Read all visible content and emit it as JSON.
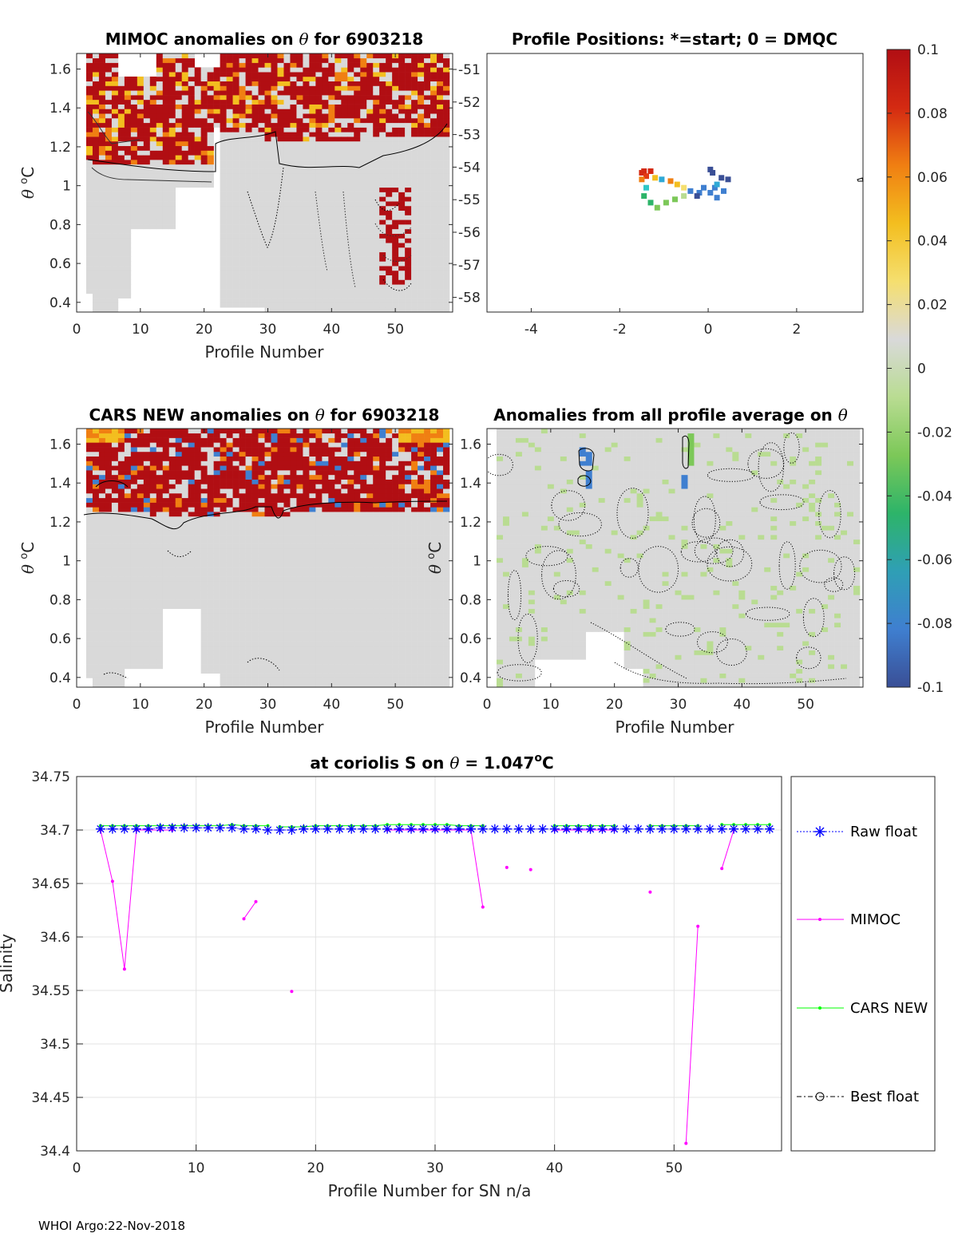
{
  "footer": "WHOI Argo:22-Nov-2018",
  "colorbar": {
    "ticks": [
      "0.1",
      "0.08",
      "0.06",
      "0.04",
      "0.02",
      "0",
      "-0.02",
      "-0.04",
      "-0.06",
      "-0.08",
      "-0.1"
    ],
    "range": [
      -0.1,
      0.1
    ],
    "stops": [
      "#3a4f96",
      "#3f7fd0",
      "#2f9fb5",
      "#2db469",
      "#7cc858",
      "#b9dc92",
      "#d9d9d9",
      "#f5df6f",
      "#f3be1f",
      "#f07f12",
      "#d42a12",
      "#b10e13"
    ]
  },
  "chart_data": [
    {
      "id": "mimoc",
      "type": "heatmap",
      "title_parts": [
        "MIMOC anomalies on ",
        "θ",
        "  for 6903218"
      ],
      "xlabel": "Profile Number",
      "ylabel_parts": [
        "θ",
        " ",
        "o",
        "C"
      ],
      "xlim": [
        0,
        59
      ],
      "ylim": [
        0.35,
        1.68
      ],
      "xticks": [
        "0",
        "10",
        "20",
        "30",
        "40",
        "50"
      ],
      "yticks": [
        "1.6",
        "1.4",
        "1.2",
        "1",
        "0.8",
        "0.6",
        "0.4"
      ],
      "y2ticks": [
        "-51",
        "-52",
        "-53",
        "-54",
        "-55",
        "-56",
        "-57",
        "-58"
      ]
    },
    {
      "id": "positions",
      "type": "scatter",
      "title": "Profile Positions: *=start; 0 = DMQC",
      "xlim": [
        -5,
        3.5
      ],
      "ylim": [
        -58.3,
        -50.5
      ],
      "xticks": [
        "-4",
        "-2",
        "0",
        "2"
      ],
      "points": [
        {
          "x": -1.5,
          "y": -54.1,
          "c": "#d42a12"
        },
        {
          "x": -1.45,
          "y": -54.05,
          "c": "#d42a12"
        },
        {
          "x": -1.3,
          "y": -54.05,
          "c": "#d42a12"
        },
        {
          "x": -1.4,
          "y": -54.2,
          "c": "#e23a13"
        },
        {
          "x": -1.5,
          "y": -54.3,
          "c": "#f07f12"
        },
        {
          "x": -1.2,
          "y": -54.25,
          "c": "#f3be1f"
        },
        {
          "x": -1.05,
          "y": -54.3,
          "c": "#2fa9d6"
        },
        {
          "x": -0.85,
          "y": -54.35,
          "c": "#f07f12"
        },
        {
          "x": -0.7,
          "y": -54.45,
          "c": "#f3be1f"
        },
        {
          "x": -0.55,
          "y": -54.55,
          "c": "#f5df6f"
        },
        {
          "x": -0.55,
          "y": -54.8,
          "c": "#b9dc92"
        },
        {
          "x": -0.75,
          "y": -54.9,
          "c": "#7cc858"
        },
        {
          "x": -0.95,
          "y": -55.0,
          "c": "#7cc858"
        },
        {
          "x": -1.15,
          "y": -55.15,
          "c": "#7cc858"
        },
        {
          "x": -1.3,
          "y": -55.0,
          "c": "#2db469"
        },
        {
          "x": -1.45,
          "y": -54.8,
          "c": "#2db469"
        },
        {
          "x": -1.4,
          "y": -54.55,
          "c": "#2fc7c7"
        },
        {
          "x": -0.4,
          "y": -54.65,
          "c": "#3f7fd0"
        },
        {
          "x": -0.2,
          "y": -54.7,
          "c": "#3f7fd0"
        },
        {
          "x": -0.1,
          "y": -54.55,
          "c": "#3f7fd0"
        },
        {
          "x": -0.25,
          "y": -54.8,
          "c": "#3a4f96"
        },
        {
          "x": 0.05,
          "y": -54.7,
          "c": "#3f7fd0"
        },
        {
          "x": 0.15,
          "y": -54.55,
          "c": "#3f7fd0"
        },
        {
          "x": 0.35,
          "y": -54.65,
          "c": "#3f7fd0"
        },
        {
          "x": 0.2,
          "y": -54.85,
          "c": "#3f7fd0"
        },
        {
          "x": 0.3,
          "y": -54.25,
          "c": "#3a4f96"
        },
        {
          "x": 0.45,
          "y": -54.3,
          "c": "#3a4f96"
        },
        {
          "x": 0.1,
          "y": -54.1,
          "c": "#3a4f96"
        },
        {
          "x": 0.05,
          "y": -54.0,
          "c": "#3a4f96"
        },
        {
          "x": 0.2,
          "y": -54.45,
          "c": "#2fa9d6"
        }
      ]
    },
    {
      "id": "cars",
      "type": "heatmap",
      "title_parts": [
        "CARS NEW anomalies on ",
        "θ",
        " for 6903218"
      ],
      "xlabel": "Profile Number",
      "ylabel_parts": [
        "θ",
        " ",
        "o",
        "C"
      ],
      "xlim": [
        0,
        59
      ],
      "ylim": [
        0.35,
        1.68
      ],
      "xticks": [
        "0",
        "10",
        "20",
        "30",
        "40",
        "50"
      ],
      "yticks": [
        "1.6",
        "1.4",
        "1.2",
        "1",
        "0.8",
        "0.6",
        "0.4"
      ]
    },
    {
      "id": "allavg",
      "type": "heatmap",
      "title_parts": [
        "Anomalies from all profile average on ",
        "θ"
      ],
      "xlabel": "Profile Number",
      "ylabel_parts": [
        "θ",
        " ",
        "o",
        "C"
      ],
      "xlim": [
        0,
        59
      ],
      "ylim": [
        0.35,
        1.68
      ],
      "xticks": [
        "0",
        "10",
        "20",
        "30",
        "40",
        "50"
      ],
      "yticks": [
        "1.6",
        "1.4",
        "1.2",
        "1",
        "0.8",
        "0.6",
        "0.4"
      ]
    },
    {
      "id": "salinity",
      "type": "line",
      "title_parts": [
        "at coriolis S on ",
        "θ",
        " = 1.047",
        "o",
        "C"
      ],
      "xlabel": "Profile Number for SN n/a",
      "ylabel": "Salinity",
      "xlim": [
        0,
        59
      ],
      "ylim": [
        34.4,
        34.75
      ],
      "grid": true,
      "xticks": [
        "0",
        "10",
        "20",
        "30",
        "40",
        "50"
      ],
      "yticks": [
        "34.75",
        "34.7",
        "34.65",
        "34.6",
        "34.55",
        "34.5",
        "34.45",
        "34.4"
      ],
      "legend": [
        "Raw float",
        "MIMOC",
        "CARS NEW",
        "Best float"
      ],
      "series": [
        {
          "name": "Raw float",
          "color": "#0000ff",
          "x": [
            2,
            3,
            4,
            5,
            6,
            7,
            8,
            9,
            10,
            11,
            12,
            13,
            14,
            15,
            16,
            17,
            18,
            19,
            20,
            21,
            22,
            23,
            24,
            25,
            26,
            27,
            28,
            29,
            30,
            31,
            32,
            33,
            34,
            35,
            36,
            37,
            38,
            39,
            40,
            41,
            42,
            43,
            44,
            45,
            46,
            47,
            48,
            49,
            50,
            51,
            52,
            53,
            54,
            55,
            56,
            57,
            58
          ],
          "y": [
            34.701,
            34.701,
            34.701,
            34.701,
            34.701,
            34.702,
            34.702,
            34.702,
            34.702,
            34.702,
            34.702,
            34.702,
            34.701,
            34.701,
            34.7,
            34.7,
            34.7,
            34.701,
            34.701,
            34.701,
            34.701,
            34.701,
            34.701,
            34.701,
            34.701,
            34.701,
            34.701,
            34.701,
            34.701,
            34.701,
            34.701,
            34.701,
            34.701,
            34.701,
            34.701,
            34.701,
            34.701,
            34.701,
            34.701,
            34.701,
            34.701,
            34.701,
            34.701,
            34.701,
            34.701,
            34.701,
            34.701,
            34.701,
            34.701,
            34.701,
            34.701,
            34.701,
            34.701,
            34.701,
            34.701,
            34.701,
            34.701
          ]
        },
        {
          "name": "MIMOC",
          "color": "#ff00ff",
          "segments": [
            {
              "x": [
                2,
                3,
                4,
                5,
                6,
                7,
                8
              ],
              "y": [
                34.7,
                34.652,
                34.57,
                34.7,
                34.7,
                34.7,
                34.7
              ]
            },
            {
              "x": [
                14,
                15
              ],
              "y": [
                34.617,
                34.633
              ]
            },
            {
              "x": [
                18
              ],
              "y": [
                34.549
              ]
            },
            {
              "x": [
                26,
                27,
                28,
                29,
                30,
                31,
                32,
                33,
                34
              ],
              "y": [
                34.7,
                34.7,
                34.7,
                34.7,
                34.7,
                34.7,
                34.7,
                34.7,
                34.628
              ]
            },
            {
              "x": [
                36
              ],
              "y": [
                34.665
              ]
            },
            {
              "x": [
                38
              ],
              "y": [
                34.663
              ]
            },
            {
              "x": [
                40,
                41,
                42,
                43,
                44,
                45
              ],
              "y": [
                34.7,
                34.7,
                34.7,
                34.7,
                34.7,
                34.7
              ]
            },
            {
              "x": [
                48
              ],
              "y": [
                34.642
              ]
            },
            {
              "x": [
                51,
                52
              ],
              "y": [
                34.407,
                34.61
              ]
            },
            {
              "x": [
                54,
                55
              ],
              "y": [
                34.664,
                34.7
              ]
            }
          ]
        },
        {
          "name": "CARS NEW",
          "color": "#00ff00",
          "segments": [
            {
              "x": [
                2,
                3,
                4,
                5,
                6,
                7,
                8,
                9,
                10,
                11,
                12,
                13,
                14,
                15,
                16
              ],
              "y": [
                34.704,
                34.704,
                34.704,
                34.704,
                34.704,
                34.704,
                34.704,
                34.704,
                34.704,
                34.704,
                34.704,
                34.705,
                34.704,
                34.704,
                34.704
              ]
            },
            {
              "x": [
                17,
                18,
                19,
                20,
                21,
                22,
                23,
                24,
                25,
                26,
                27,
                28,
                29,
                30,
                31,
                32,
                33,
                34
              ],
              "y": [
                34.703,
                34.703,
                34.703,
                34.704,
                34.704,
                34.704,
                34.704,
                34.704,
                34.704,
                34.705,
                34.705,
                34.705,
                34.705,
                34.705,
                34.705,
                34.704,
                34.704,
                34.704
              ]
            },
            {
              "x": [
                40,
                41,
                42,
                43,
                44,
                45
              ],
              "y": [
                34.704,
                34.704,
                34.704,
                34.704,
                34.704,
                34.704
              ]
            },
            {
              "x": [
                48,
                49,
                50,
                51,
                52
              ],
              "y": [
                34.704,
                34.704,
                34.704,
                34.704,
                34.704
              ]
            },
            {
              "x": [
                54,
                55,
                56,
                57,
                58
              ],
              "y": [
                34.705,
                34.705,
                34.705,
                34.705,
                34.705
              ]
            }
          ]
        },
        {
          "name": "Best float",
          "color": "#000000",
          "x": [],
          "y": []
        }
      ]
    }
  ]
}
